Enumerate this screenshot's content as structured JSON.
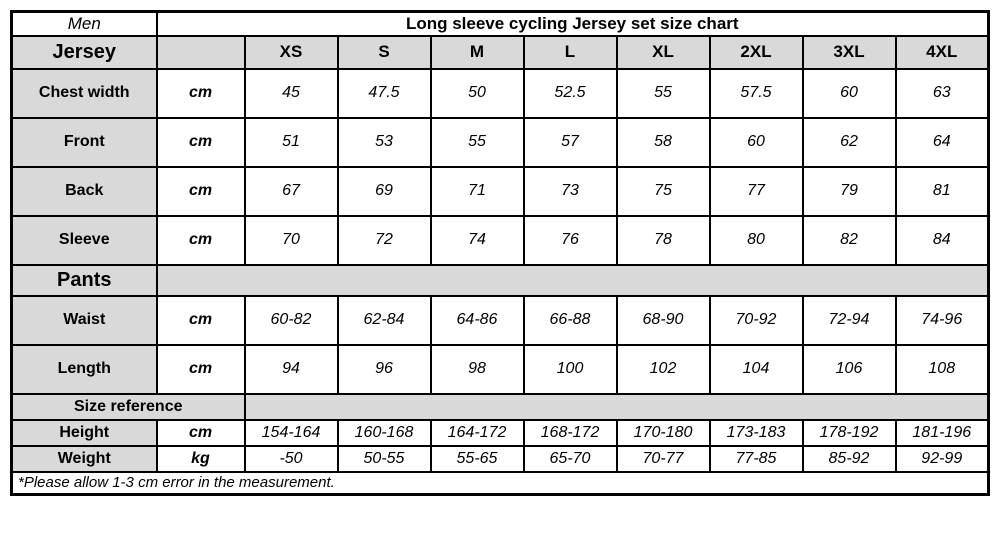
{
  "colors": {
    "header_bg": "#d9d9d9",
    "cell_bg": "#ffffff",
    "border": "#000000",
    "text": "#000000"
  },
  "table": {
    "corner_label": "Men",
    "title": "Long sleeve cycling Jersey set size chart",
    "size_headers": [
      "XS",
      "S",
      "M",
      "L",
      "XL",
      "2XL",
      "3XL",
      "4XL"
    ],
    "jersey_section": {
      "label": "Jersey",
      "rows": [
        {
          "label": "Chest width",
          "unit": "cm",
          "values": [
            "45",
            "47.5",
            "50",
            "52.5",
            "55",
            "57.5",
            "60",
            "63"
          ]
        },
        {
          "label": "Front",
          "unit": "cm",
          "values": [
            "51",
            "53",
            "55",
            "57",
            "58",
            "60",
            "62",
            "64"
          ]
        },
        {
          "label": "Back",
          "unit": "cm",
          "values": [
            "67",
            "69",
            "71",
            "73",
            "75",
            "77",
            "79",
            "81"
          ]
        },
        {
          "label": "Sleeve",
          "unit": "cm",
          "values": [
            "70",
            "72",
            "74",
            "76",
            "78",
            "80",
            "82",
            "84"
          ]
        }
      ]
    },
    "pants_section": {
      "label": "Pants",
      "rows": [
        {
          "label": "Waist",
          "unit": "cm",
          "values": [
            "60-82",
            "62-84",
            "64-86",
            "66-88",
            "68-90",
            "70-92",
            "72-94",
            "74-96"
          ]
        },
        {
          "label": "Length",
          "unit": "cm",
          "values": [
            "94",
            "96",
            "98",
            "100",
            "102",
            "104",
            "106",
            "108"
          ]
        }
      ]
    },
    "size_reference_section": {
      "label": "Size reference",
      "rows": [
        {
          "label": "Height",
          "unit": "cm",
          "values": [
            "154-164",
            "160-168",
            "164-172",
            "168-172",
            "170-180",
            "173-183",
            "178-192",
            "181-196"
          ]
        },
        {
          "label": "Weight",
          "unit": "kg",
          "values": [
            "-50",
            "50-55",
            "55-65",
            "65-70",
            "70-77",
            "77-85",
            "85-92",
            "92-99"
          ]
        }
      ]
    },
    "footnote": "*Please allow 1-3 cm error in the measurement."
  }
}
